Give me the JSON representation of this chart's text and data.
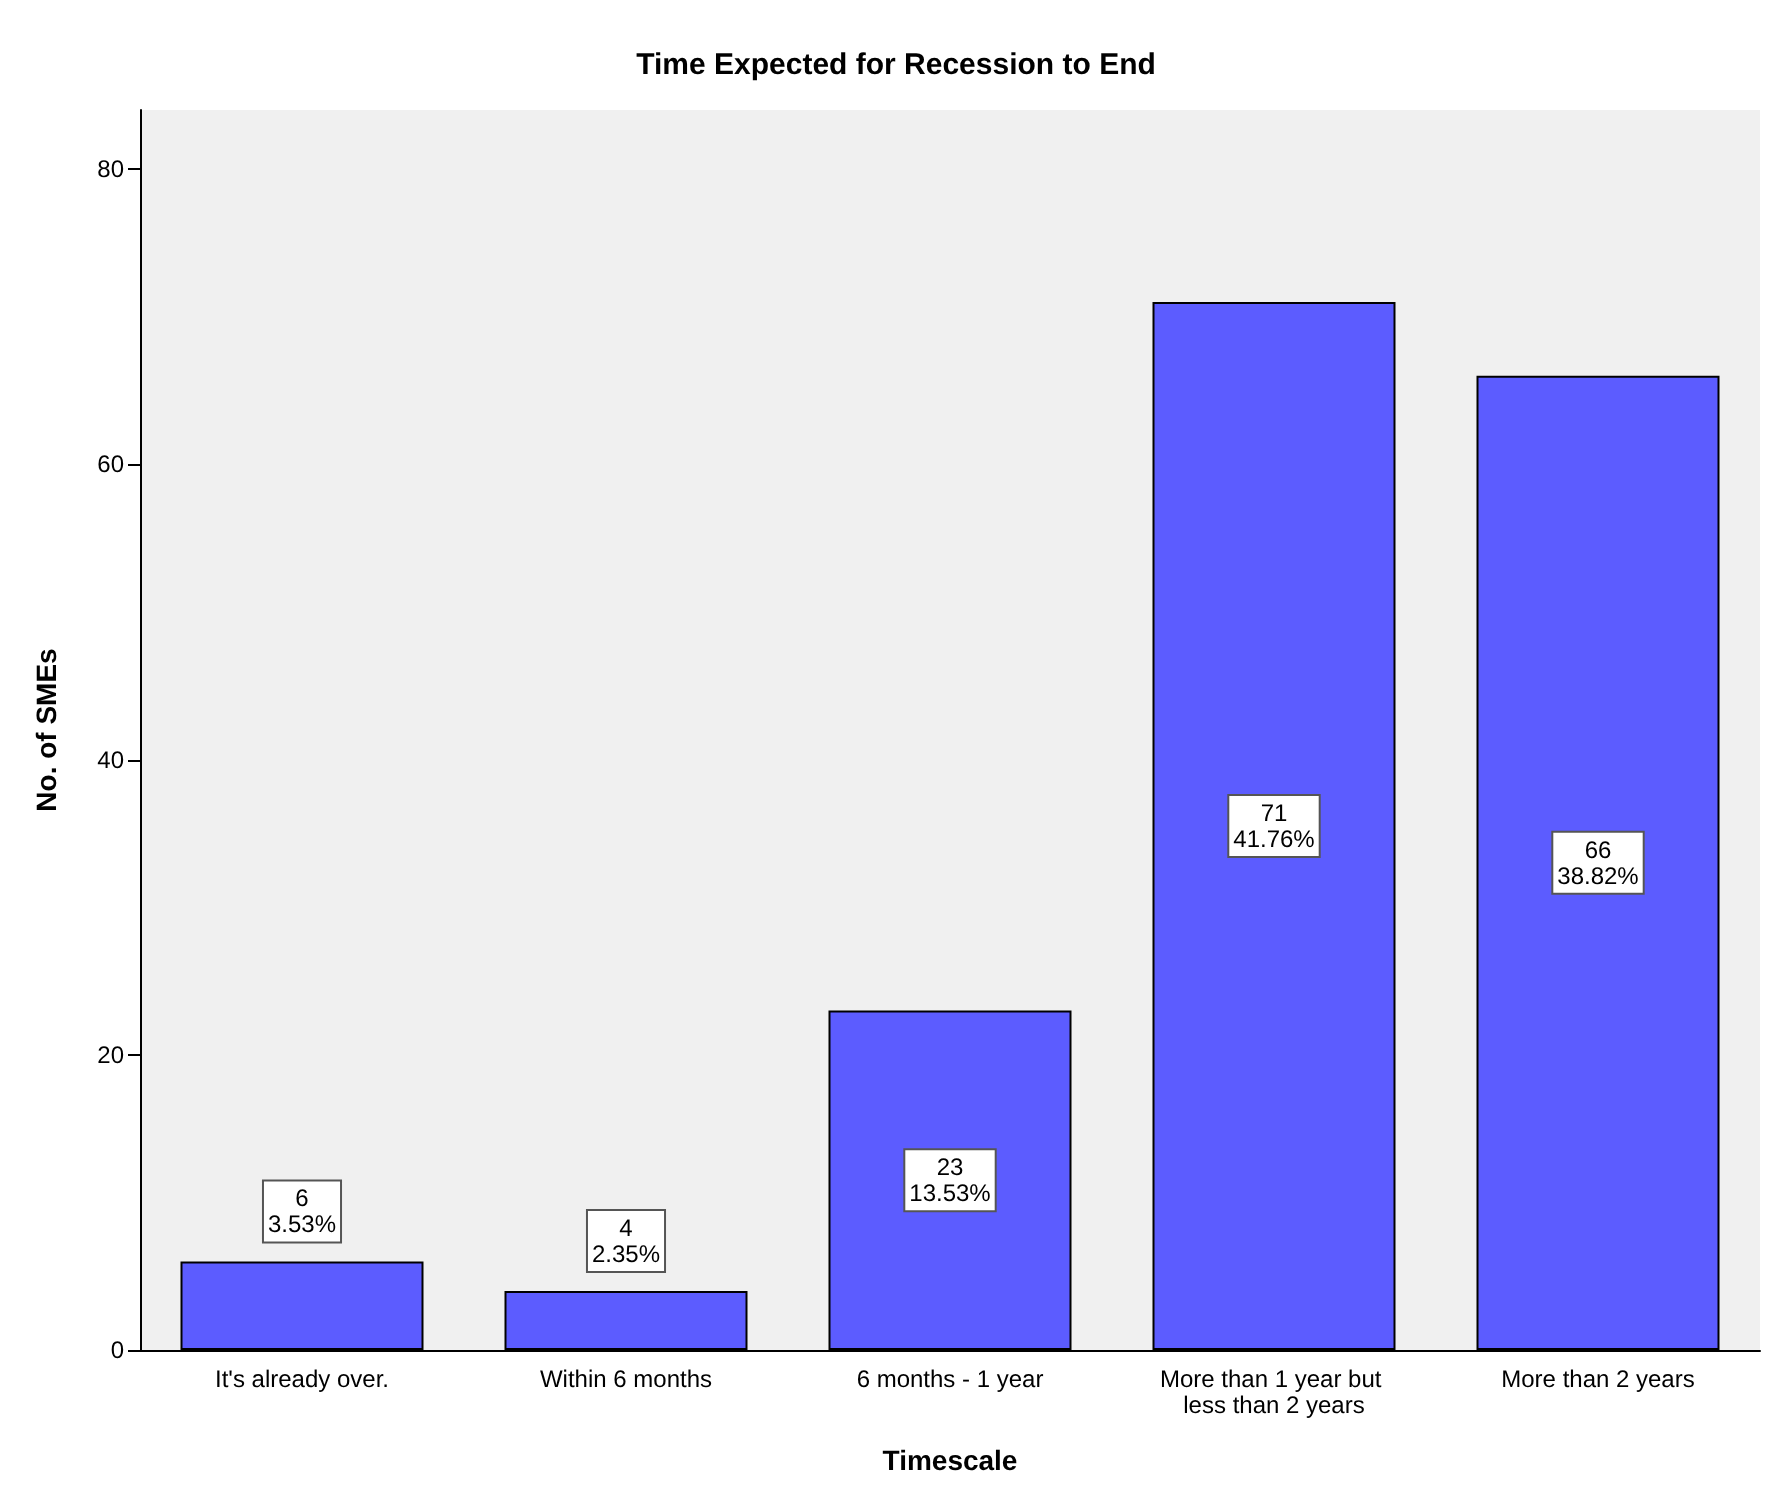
{
  "chart_data": {
    "type": "bar",
    "title": "Time Expected for Recession to End",
    "xlabel": "Timescale",
    "ylabel": "No. of SMEs",
    "categories": [
      "It's already over.",
      "Within 6 months",
      "6 months - 1 year",
      "More than 1 year but less than 2 years",
      "More than 2 years"
    ],
    "values": [
      6,
      4,
      23,
      71,
      66
    ],
    "value_labels": [
      "6\n3.53%",
      "4\n2.35%",
      "23\n13.53%",
      "71\n41.76%",
      "66\n38.82%"
    ],
    "color": "#5c5cff",
    "ylim": [
      0,
      84
    ],
    "yticks": [
      0,
      20,
      40,
      60,
      80
    ],
    "grid": false
  }
}
